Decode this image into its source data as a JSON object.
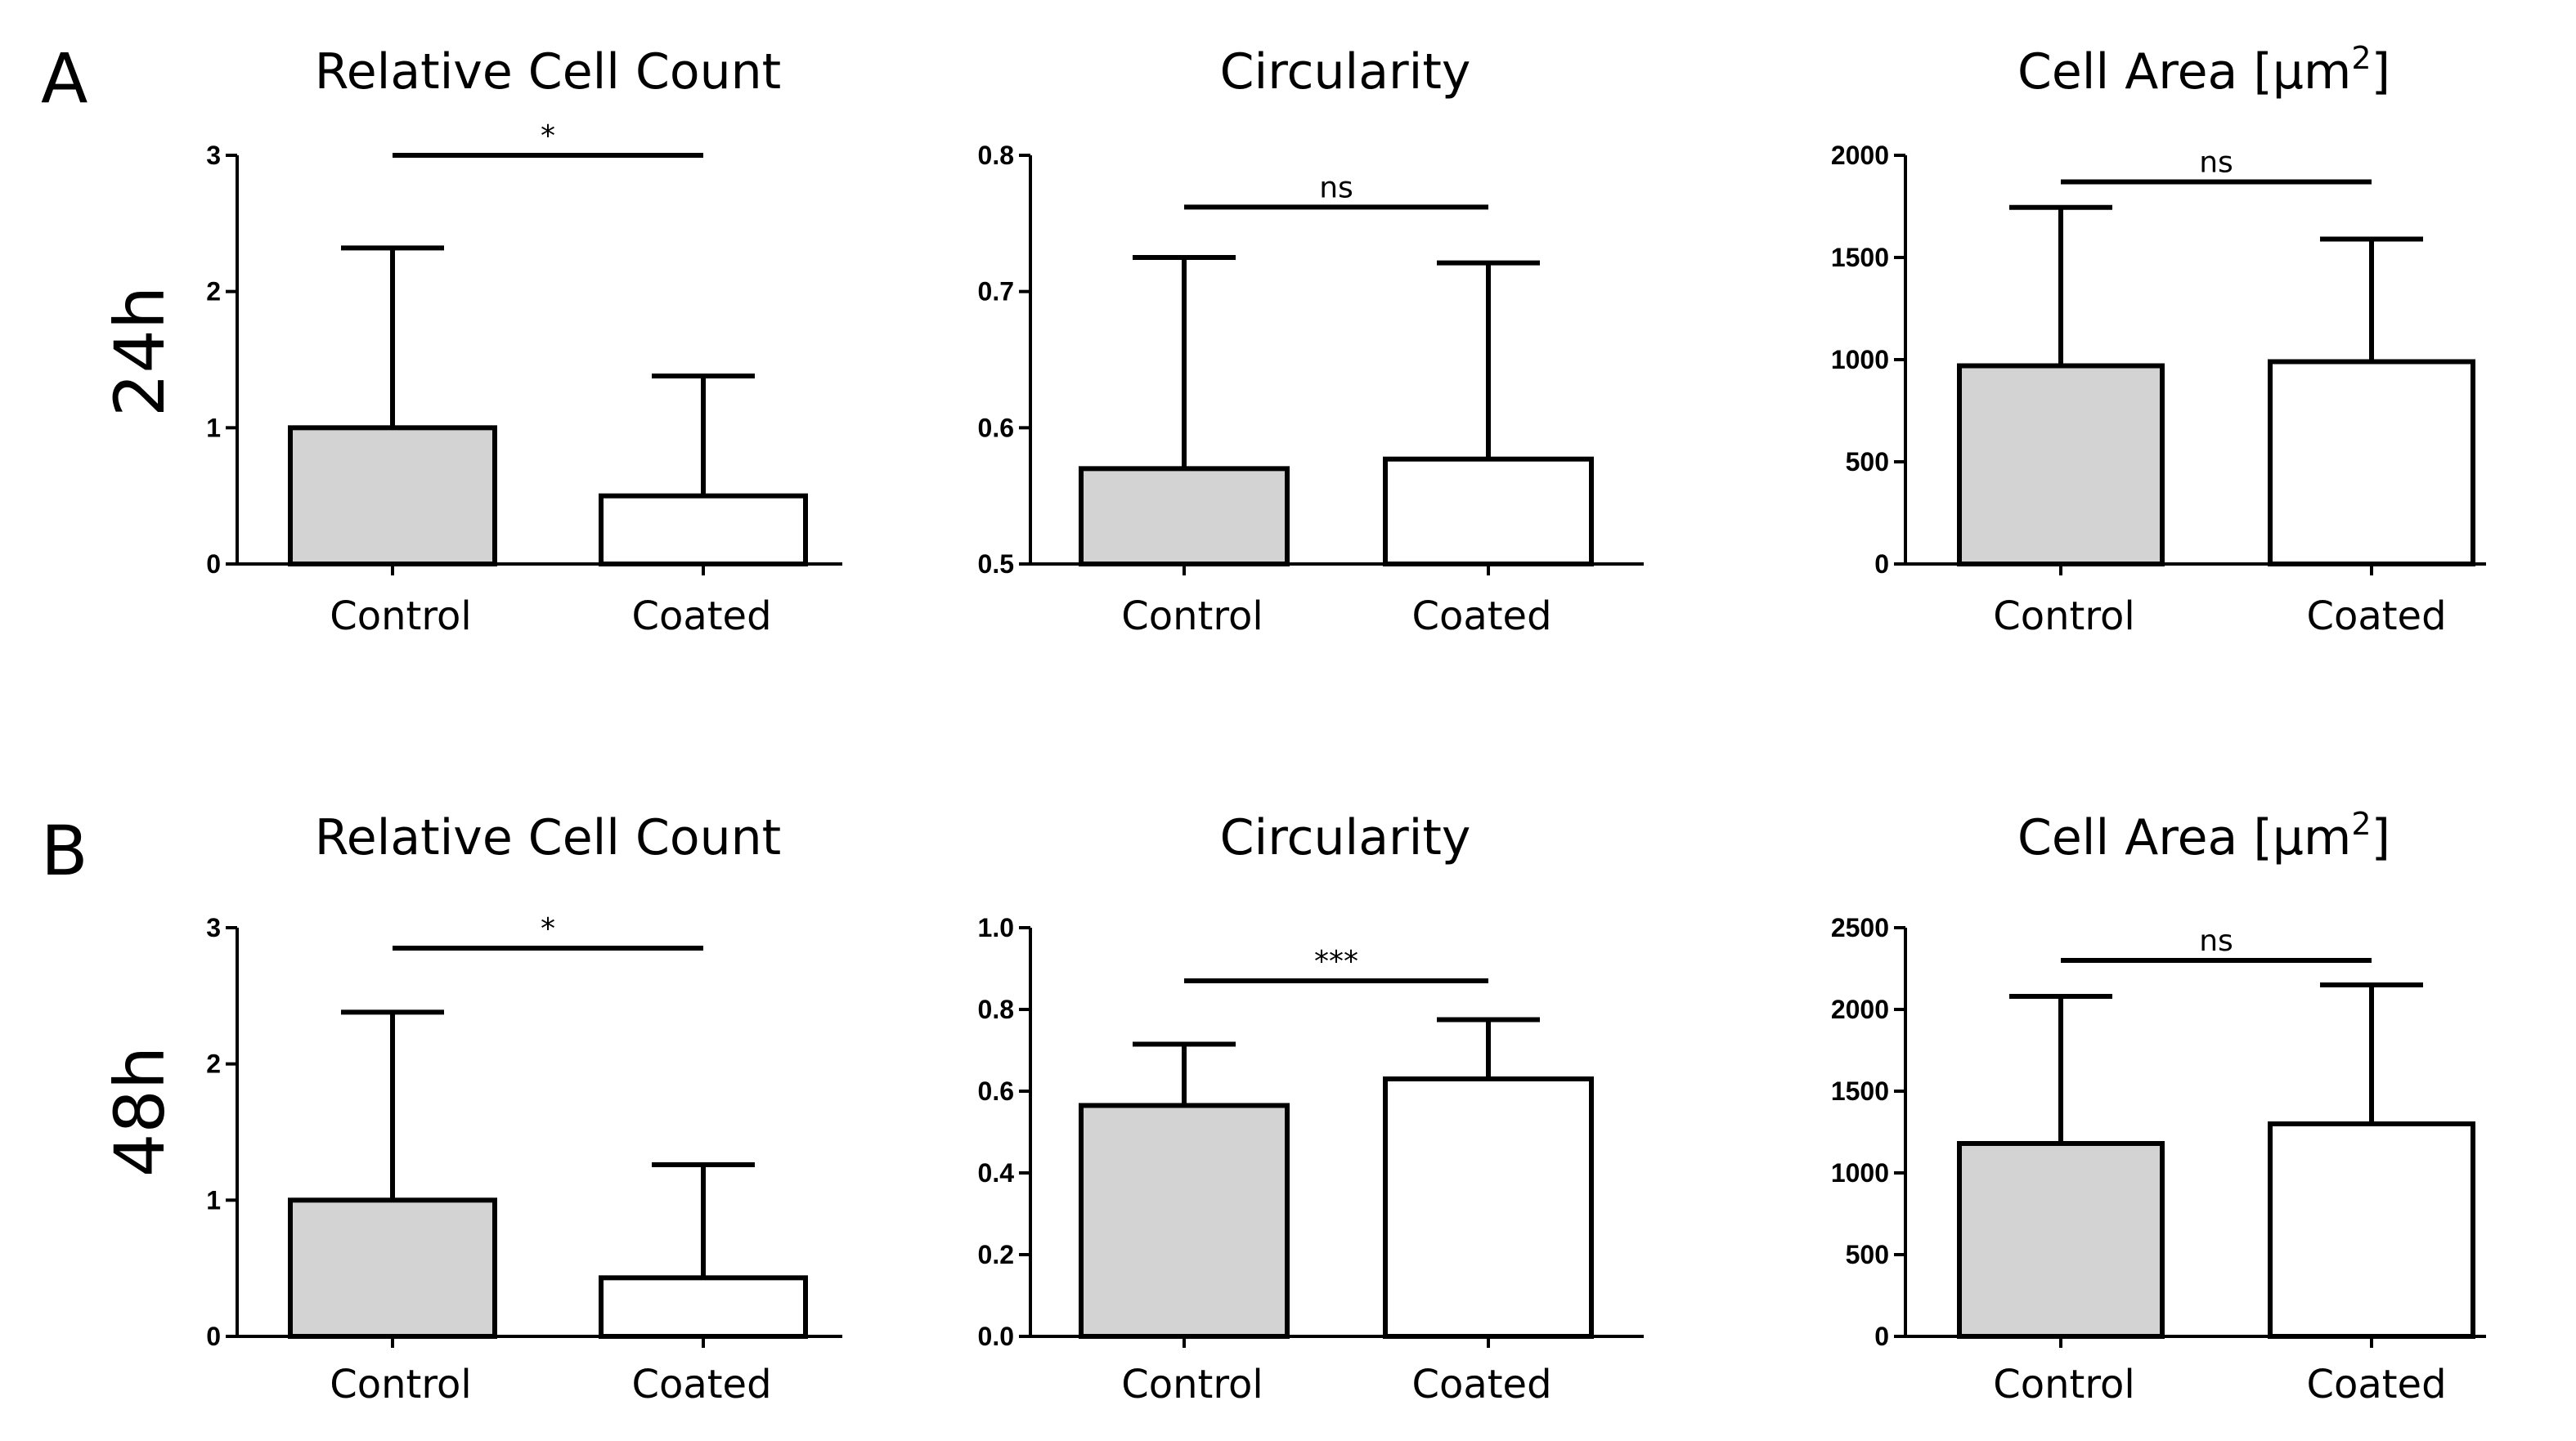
{
  "figure": {
    "rows": [
      {
        "letter": "A",
        "time_label": "24h"
      },
      {
        "letter": "B",
        "time_label": "48h"
      }
    ]
  },
  "chart_data": [
    {
      "type": "bar",
      "panel": "A",
      "row": 0,
      "col": 0,
      "title": "Relative Cell Count",
      "categories": [
        "Control",
        "Coated"
      ],
      "values": [
        1.0,
        0.5
      ],
      "errors_upper": [
        2.32,
        1.38
      ],
      "bar_colors": [
        "#d3d3d3",
        "#ffffff"
      ],
      "ylim": [
        0,
        3
      ],
      "yticks": [
        0,
        1,
        2,
        3
      ],
      "ytick_labels": [
        "0",
        "1",
        "2",
        "3"
      ],
      "significance": {
        "label": "*",
        "level": 3.0
      }
    },
    {
      "type": "bar",
      "panel": "A",
      "row": 0,
      "col": 1,
      "title": "Circularity",
      "categories": [
        "Control",
        "Coated"
      ],
      "values": [
        0.57,
        0.577
      ],
      "errors_upper": [
        0.725,
        0.721
      ],
      "bar_colors": [
        "#d3d3d3",
        "#ffffff"
      ],
      "ylim": [
        0.5,
        0.8
      ],
      "yticks": [
        0.5,
        0.6,
        0.7,
        0.8
      ],
      "ytick_labels": [
        "0.5",
        "0.6",
        "0.7",
        "0.8"
      ],
      "significance": {
        "label": "ns",
        "level": 0.762
      }
    },
    {
      "type": "bar",
      "panel": "A",
      "row": 0,
      "col": 2,
      "title": "Cell Area [µm",
      "title_sup": "2",
      "title_end": "]",
      "categories": [
        "Control",
        "Coated"
      ],
      "values": [
        970,
        990
      ],
      "errors_upper": [
        1745,
        1590
      ],
      "bar_colors": [
        "#d3d3d3",
        "#ffffff"
      ],
      "ylim": [
        0,
        2000
      ],
      "yticks": [
        0,
        500,
        1000,
        1500,
        2000
      ],
      "ytick_labels": [
        "0",
        "500",
        "1000",
        "1500",
        "2000"
      ],
      "significance": {
        "label": "ns",
        "level": 1870
      }
    },
    {
      "type": "bar",
      "panel": "B",
      "row": 1,
      "col": 0,
      "title": "Relative Cell Count",
      "categories": [
        "Control",
        "Coated"
      ],
      "values": [
        1.0,
        0.43
      ],
      "errors_upper": [
        2.38,
        1.26
      ],
      "bar_colors": [
        "#d3d3d3",
        "#ffffff"
      ],
      "ylim": [
        0,
        3
      ],
      "yticks": [
        0,
        1,
        2,
        3
      ],
      "ytick_labels": [
        "0",
        "1",
        "2",
        "3"
      ],
      "significance": {
        "label": "*",
        "level": 2.85
      }
    },
    {
      "type": "bar",
      "panel": "B",
      "row": 1,
      "col": 1,
      "title": "Circularity",
      "categories": [
        "Control",
        "Coated"
      ],
      "values": [
        0.565,
        0.63
      ],
      "errors_upper": [
        0.715,
        0.775
      ],
      "bar_colors": [
        "#d3d3d3",
        "#ffffff"
      ],
      "ylim": [
        0,
        1.0
      ],
      "yticks": [
        0,
        0.2,
        0.4,
        0.6,
        0.8,
        1.0
      ],
      "ytick_labels": [
        "0.0",
        "0.2",
        "0.4",
        "0.6",
        "0.8",
        "1.0"
      ],
      "significance": {
        "label": "***",
        "level": 0.87
      }
    },
    {
      "type": "bar",
      "panel": "B",
      "row": 1,
      "col": 2,
      "title": "Cell Area [µm",
      "title_sup": "2",
      "title_end": "]",
      "categories": [
        "Control",
        "Coated"
      ],
      "values": [
        1180,
        1300
      ],
      "errors_upper": [
        2080,
        2150
      ],
      "bar_colors": [
        "#d3d3d3",
        "#ffffff"
      ],
      "ylim": [
        0,
        2500
      ],
      "yticks": [
        0,
        500,
        1000,
        1500,
        2000,
        2500
      ],
      "ytick_labels": [
        "0",
        "500",
        "1000",
        "1500",
        "2000",
        "2500"
      ],
      "significance": {
        "label": "ns",
        "level": 2300
      }
    }
  ]
}
